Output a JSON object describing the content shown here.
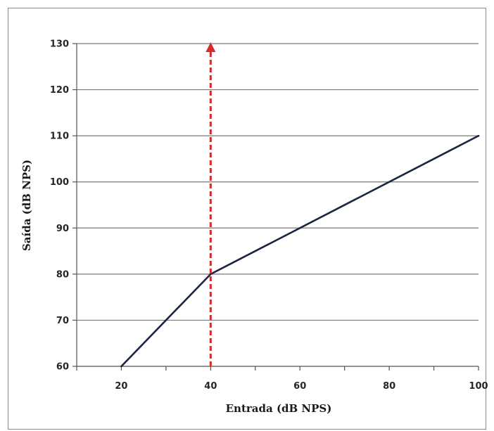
{
  "chart_data": {
    "type": "line",
    "title": "",
    "xlabel": "Entrada (dB NPS)",
    "ylabel": "Saída (dB NPS)",
    "xlim": [
      10,
      100
    ],
    "ylim": [
      60,
      130
    ],
    "x_ticks": [
      20,
      40,
      60,
      80,
      100
    ],
    "x_minor_ticks": [
      10,
      30,
      50,
      70,
      90
    ],
    "y_ticks": [
      60,
      70,
      80,
      90,
      100,
      110,
      120,
      130
    ],
    "grid": "horizontal",
    "legend": "none",
    "series": [
      {
        "x": [
          20,
          40,
          100
        ],
        "y": [
          60,
          80,
          110
        ],
        "color": "#1a2540"
      }
    ],
    "annotations": [
      {
        "kind": "vertical-dashed-arrow",
        "x": 40,
        "from_y": 60,
        "to_y": 130,
        "direction": "up",
        "color": "#d62b2b"
      }
    ]
  }
}
